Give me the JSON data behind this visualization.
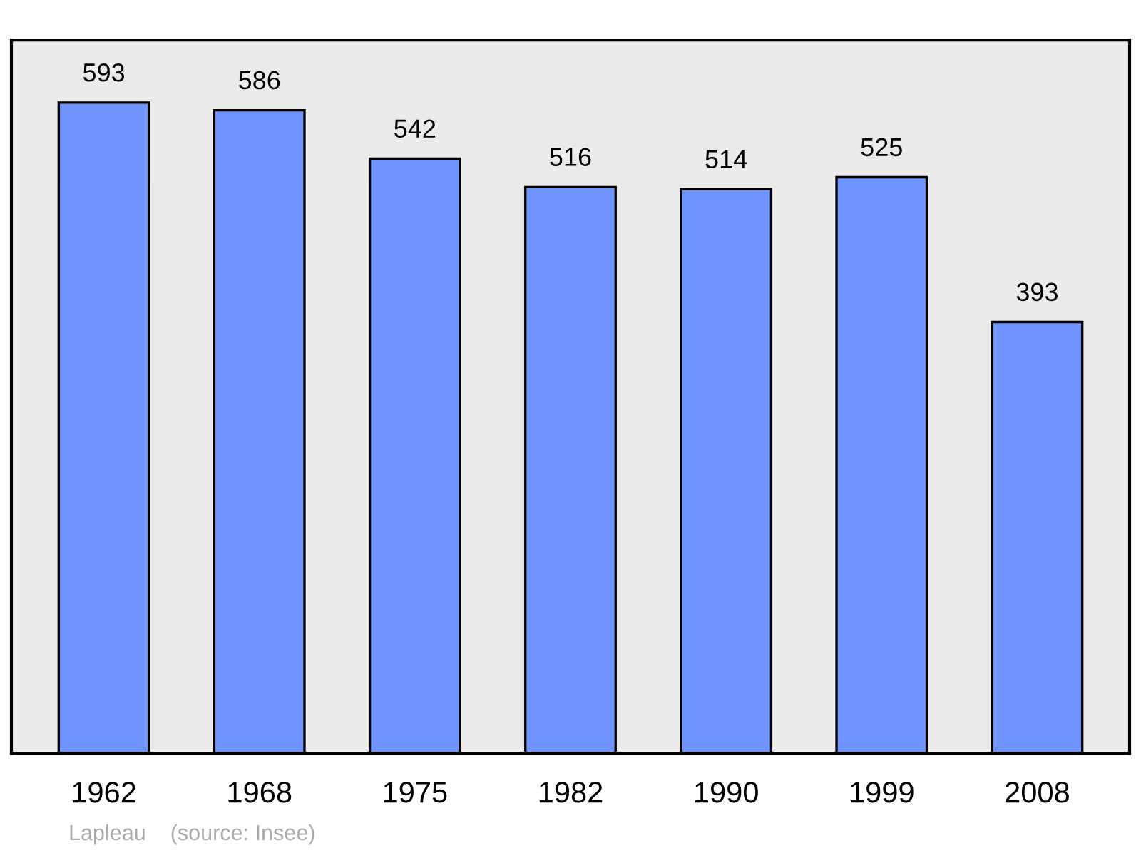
{
  "chart_data": {
    "type": "bar",
    "categories": [
      "1962",
      "1968",
      "1975",
      "1982",
      "1990",
      "1999",
      "2008"
    ],
    "values": [
      593,
      586,
      542,
      516,
      514,
      525,
      393
    ],
    "color": "#7094ff",
    "ylim": [
      0,
      650
    ],
    "data_labels": true,
    "grid": false,
    "legend": false,
    "tick_labels": "x",
    "annotations": [
      "Lapleau    (source: Insee)"
    ]
  }
}
